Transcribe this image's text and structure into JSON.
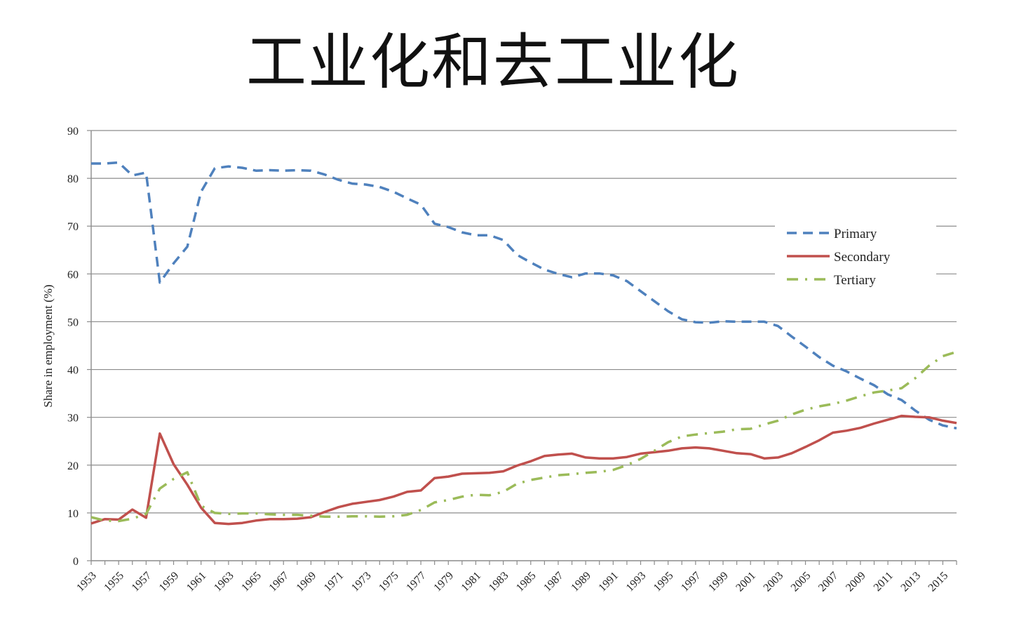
{
  "page": {
    "title": "工业化和去工业化"
  },
  "chart_data": {
    "type": "line",
    "title": "",
    "xlabel": "",
    "ylabel": "Share in employment (%)",
    "ylim": [
      0,
      90
    ],
    "yticks": [
      0,
      10,
      20,
      30,
      40,
      50,
      60,
      70,
      80,
      90
    ],
    "xlim": [
      1953,
      2016
    ],
    "xtick_labels": [
      "1953",
      "1955",
      "1957",
      "1959",
      "1961",
      "1963",
      "1965",
      "1967",
      "1969",
      "1971",
      "1973",
      "1975",
      "1977",
      "1979",
      "1981",
      "1983",
      "1985",
      "1987",
      "1989",
      "1991",
      "1993",
      "1995",
      "1997",
      "1999",
      "2001",
      "2003",
      "2005",
      "2007",
      "2009",
      "2011",
      "2013",
      "2015"
    ],
    "grid": "horizontal",
    "legend_position": "right",
    "x": [
      1953,
      1954,
      1955,
      1956,
      1957,
      1958,
      1959,
      1960,
      1961,
      1962,
      1963,
      1964,
      1965,
      1966,
      1967,
      1968,
      1969,
      1970,
      1971,
      1972,
      1973,
      1974,
      1975,
      1976,
      1977,
      1978,
      1979,
      1980,
      1981,
      1982,
      1983,
      1984,
      1985,
      1986,
      1987,
      1988,
      1989,
      1990,
      1991,
      1992,
      1993,
      1994,
      1995,
      1996,
      1997,
      1998,
      1999,
      2000,
      2001,
      2002,
      2003,
      2004,
      2005,
      2006,
      2007,
      2008,
      2009,
      2010,
      2011,
      2012,
      2013,
      2014,
      2015,
      2016
    ],
    "series": [
      {
        "name": "Primary",
        "color": "#4F81BD",
        "dash": "dashed",
        "values": [
          83.1,
          83.1,
          83.3,
          80.6,
          81.2,
          58.2,
          62.2,
          65.7,
          77.2,
          82.1,
          82.5,
          82.2,
          81.6,
          81.7,
          81.6,
          81.7,
          81.6,
          80.8,
          79.7,
          78.9,
          78.7,
          78.2,
          77.2,
          75.8,
          74.5,
          70.5,
          69.8,
          68.7,
          68.1,
          68.1,
          67.1,
          64.0,
          62.4,
          60.9,
          60.0,
          59.3,
          60.1,
          60.1,
          59.7,
          58.5,
          56.4,
          54.3,
          52.2,
          50.5,
          49.9,
          49.8,
          50.1,
          50.0,
          50.0,
          50.0,
          49.1,
          46.9,
          44.8,
          42.6,
          40.8,
          39.6,
          38.1,
          36.7,
          34.8,
          33.6,
          31.4,
          29.5,
          28.3,
          27.7
        ]
      },
      {
        "name": "Secondary",
        "color": "#C0504D",
        "dash": "solid",
        "values": [
          7.8,
          8.7,
          8.6,
          10.7,
          9.0,
          26.6,
          20.2,
          15.9,
          11.1,
          7.9,
          7.7,
          7.9,
          8.4,
          8.7,
          8.7,
          8.8,
          9.1,
          10.2,
          11.2,
          11.9,
          12.3,
          12.7,
          13.4,
          14.4,
          14.7,
          17.3,
          17.6,
          18.2,
          18.3,
          18.4,
          18.7,
          19.9,
          20.8,
          21.9,
          22.2,
          22.4,
          21.6,
          21.4,
          21.4,
          21.7,
          22.4,
          22.7,
          23.0,
          23.5,
          23.7,
          23.5,
          23.0,
          22.5,
          22.3,
          21.4,
          21.6,
          22.5,
          23.8,
          25.2,
          26.8,
          27.2,
          27.8,
          28.7,
          29.5,
          30.3,
          30.1,
          30.0,
          29.3,
          28.8
        ]
      },
      {
        "name": "Tertiary",
        "color": "#9BBB59",
        "dash": "dashdot",
        "values": [
          9.1,
          8.4,
          8.3,
          8.8,
          9.8,
          15.1,
          17.1,
          18.5,
          11.5,
          10.0,
          9.8,
          9.9,
          9.9,
          9.7,
          9.6,
          9.6,
          9.4,
          9.2,
          9.2,
          9.3,
          9.3,
          9.2,
          9.3,
          9.6,
          10.6,
          12.2,
          12.7,
          13.4,
          13.8,
          13.7,
          14.4,
          16.1,
          16.9,
          17.4,
          17.9,
          18.1,
          18.4,
          18.6,
          19.0,
          20.0,
          21.3,
          23.0,
          24.8,
          26.0,
          26.4,
          26.7,
          27.0,
          27.5,
          27.6,
          28.5,
          29.3,
          30.6,
          31.6,
          32.3,
          32.8,
          33.5,
          34.4,
          35.2,
          35.6,
          36.1,
          38.2,
          40.8,
          42.8,
          43.7
        ]
      }
    ]
  }
}
